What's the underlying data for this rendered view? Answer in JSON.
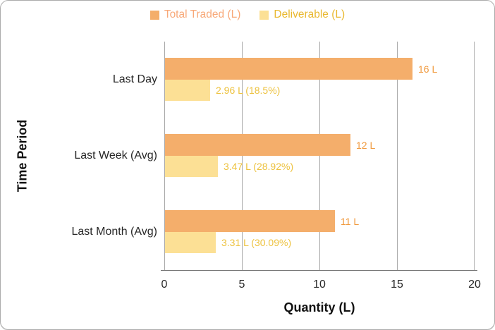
{
  "chart_data": {
    "type": "bar",
    "orientation": "horizontal",
    "categories": [
      "Last Day",
      "Last Week (Avg)",
      "Last Month (Avg)"
    ],
    "series": [
      {
        "name": "Total Traded (L)",
        "color": "#F4AE6B",
        "legend_text_color": "#F8A878",
        "label_color": "#F09A3E",
        "values": [
          16,
          12,
          11
        ],
        "data_labels": [
          "16 L",
          "12 L",
          "11 L"
        ]
      },
      {
        "name": "Deliverable (L)",
        "color": "#FCE095",
        "legend_text_color": "#E9B82E",
        "label_color": "#EDC23F",
        "values": [
          2.96,
          3.47,
          3.31
        ],
        "data_labels": [
          "2.96 L (18.5%)",
          "3.47 L (28.92%)",
          "3.31 L (30.09%)"
        ]
      }
    ],
    "xlabel": "Quantity (L)",
    "ylabel": "Time Period",
    "xlim": [
      0,
      20
    ],
    "xticks": [
      "0",
      "5",
      "10",
      "15",
      "20"
    ],
    "grid": true,
    "legend_position": "top"
  },
  "colors": {
    "gridline": "#A8A8A8",
    "axis_line": "#747474",
    "tick_text": "#262626",
    "frame_border": "#ABABAB"
  }
}
